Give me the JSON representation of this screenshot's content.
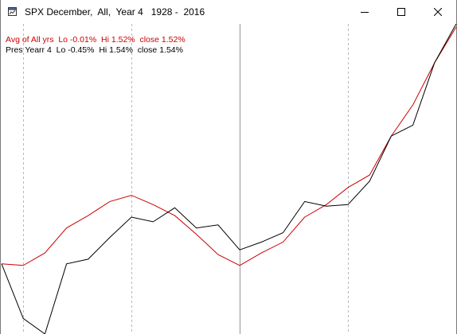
{
  "window": {
    "title": "SPX December,  All,  Year 4   1928 -  2016",
    "icons": {
      "app": "chart-window-icon",
      "minimize": "minimize-icon",
      "maximize": "maximize-icon",
      "close": "close-icon"
    }
  },
  "legend": [
    {
      "text": "Avg of All yrs  Lo -0.01%  Hi 1.52%  close 1.52%",
      "color": "#cc0000"
    },
    {
      "text": "Pres Yearr 4  Lo -0.45%  Hi 1.54%  close 1.54%",
      "color": "#000000"
    }
  ],
  "chart_data": {
    "type": "line",
    "x": [
      1,
      2,
      3,
      4,
      5,
      6,
      7,
      8,
      9,
      10,
      11,
      12,
      13,
      14,
      15,
      16,
      17,
      18,
      19,
      20,
      21,
      22
    ],
    "series": [
      {
        "name": "Avg of All yrs",
        "color": "#cc0000",
        "values": [
          0.0,
          -0.01,
          0.07,
          0.23,
          0.31,
          0.4,
          0.44,
          0.38,
          0.31,
          0.19,
          0.06,
          -0.01,
          0.07,
          0.14,
          0.3,
          0.38,
          0.49,
          0.57,
          0.82,
          1.02,
          1.29,
          1.52
        ]
      },
      {
        "name": "Pres Yearr 4",
        "color": "#000000",
        "values": [
          0.0,
          -0.35,
          -0.45,
          0.0,
          0.03,
          0.17,
          0.3,
          0.27,
          0.36,
          0.23,
          0.25,
          0.09,
          0.14,
          0.2,
          0.4,
          0.37,
          0.38,
          0.53,
          0.82,
          0.89,
          1.29,
          1.54
        ]
      }
    ],
    "ylim": [
      -0.45,
      1.54
    ],
    "grid": {
      "dashed_verticals_at_x": [
        2,
        7,
        17
      ],
      "solid_vertical_at_x": 12
    }
  }
}
